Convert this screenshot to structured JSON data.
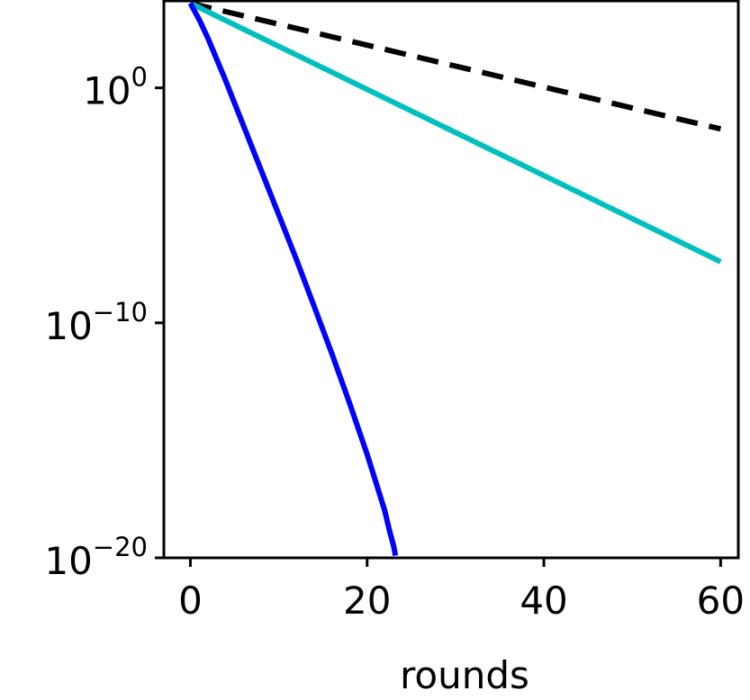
{
  "chart_data": {
    "type": "line",
    "title": "",
    "xlabel": "rounds",
    "ylabel": "",
    "xlim": [
      -3,
      62
    ],
    "ylim": [
      -20,
      3.7
    ],
    "yscale": "log",
    "grid": false,
    "legend": "none",
    "x_ticks": [
      {
        "value": 0,
        "label": "0"
      },
      {
        "value": 20,
        "label": "20"
      },
      {
        "value": 40,
        "label": "40"
      },
      {
        "value": 60,
        "label": "60"
      }
    ],
    "y_ticks": [
      {
        "exponent": 0,
        "base": "10",
        "sup": "0"
      },
      {
        "exponent": -10,
        "base": "10",
        "sup": "−10"
      },
      {
        "exponent": -20,
        "base": "10",
        "sup": "−20"
      }
    ],
    "series": [
      {
        "color": "#000000",
        "style": "dashed",
        "x": [
          0,
          60
        ],
        "log10_y": [
          3.6,
          -1.75
        ]
      },
      {
        "color": "#00bfbf",
        "style": "solid",
        "x": [
          0,
          60
        ],
        "log10_y": [
          3.6,
          -7.4
        ]
      },
      {
        "color": "#0000ff",
        "style": "solid",
        "x": [
          0,
          1,
          2,
          3,
          4,
          6,
          8,
          10,
          12,
          14,
          16,
          18,
          20,
          21,
          22,
          22.5,
          23,
          23.2
        ],
        "log10_y": [
          3.6,
          2.9,
          2.1,
          1.2,
          0.3,
          -1.6,
          -3.5,
          -5.4,
          -7.3,
          -9.3,
          -11.3,
          -13.4,
          -15.6,
          -16.8,
          -18.0,
          -18.8,
          -19.5,
          -19.9
        ]
      }
    ]
  }
}
